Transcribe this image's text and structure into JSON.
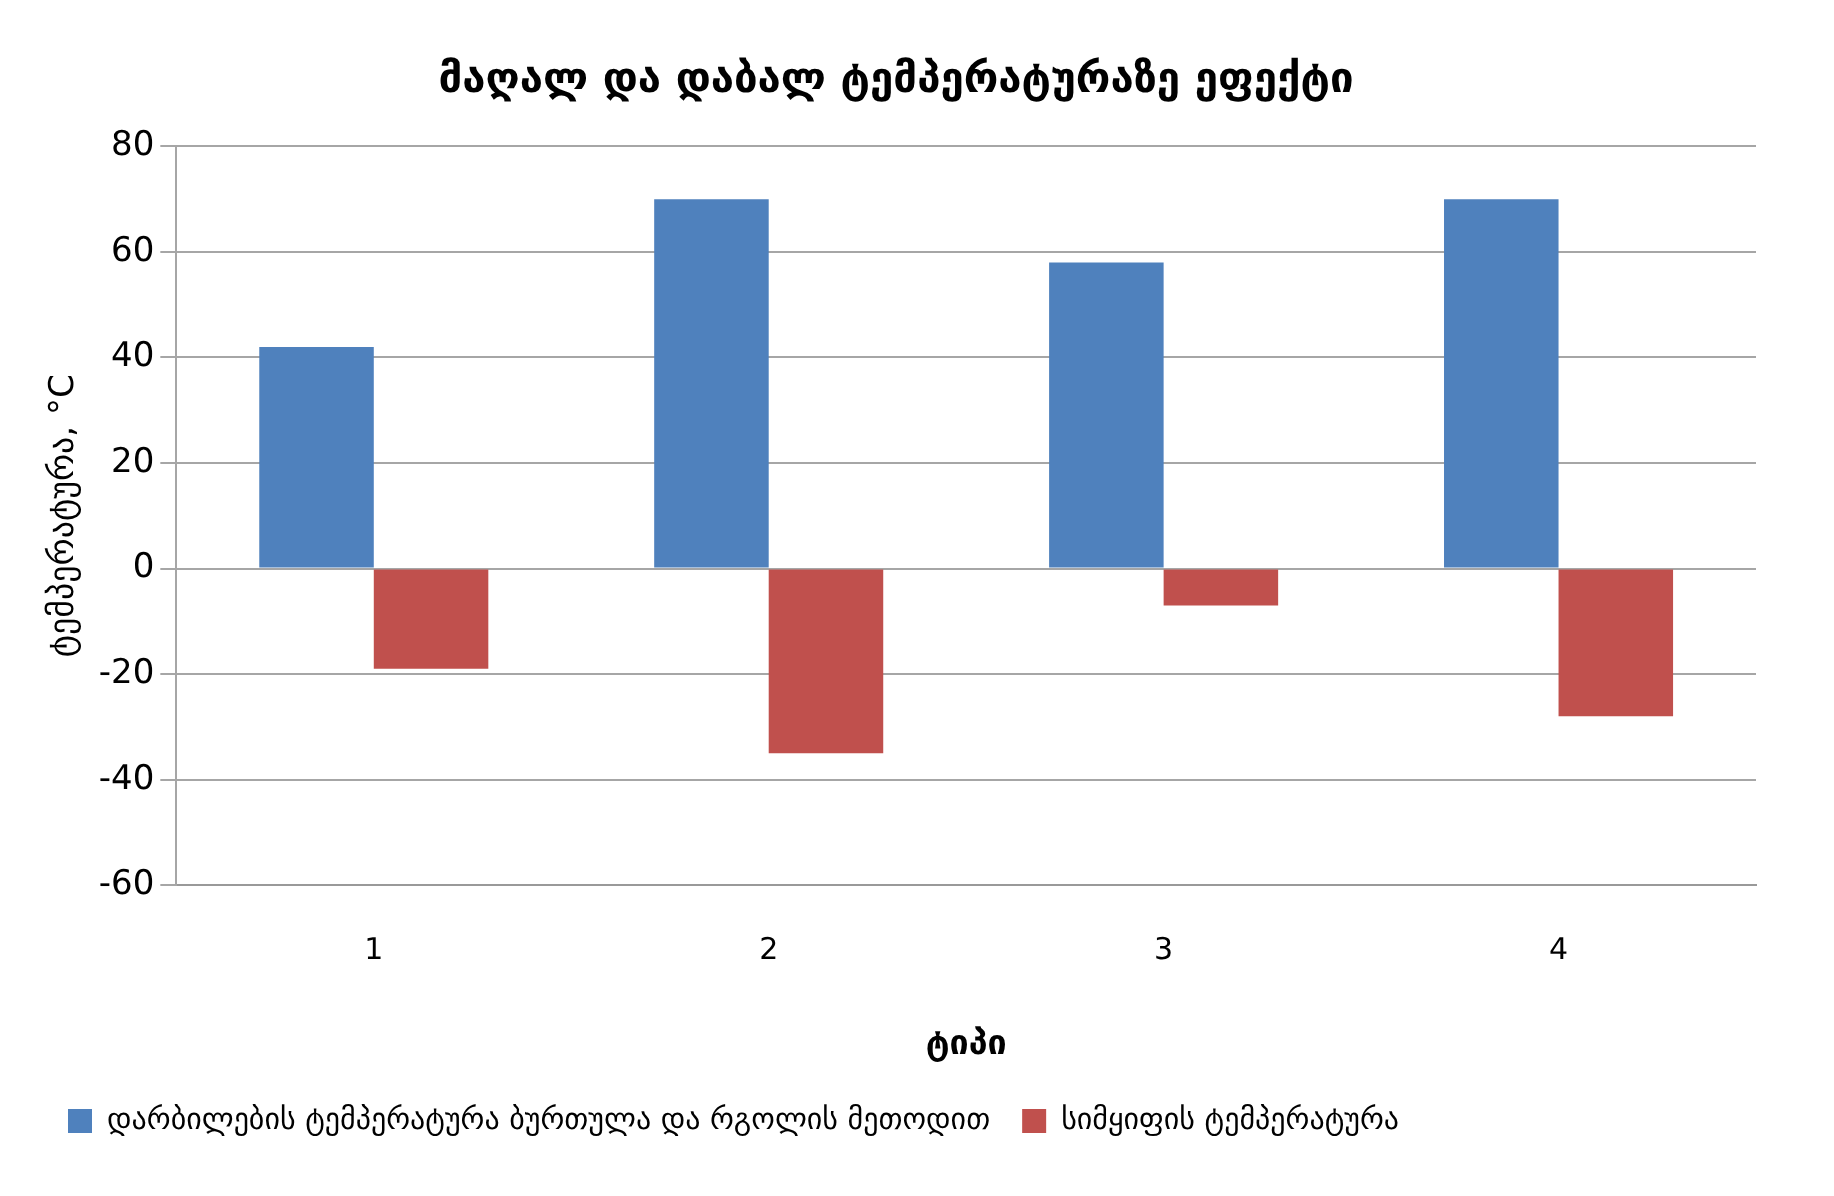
{
  "chart_data": {
    "type": "bar",
    "title": "მაღალ და დაბალ ტემპერატურაზე ეფექტი",
    "xlabel": "ტიპი",
    "ylabel": "ტემპერატურა, °C",
    "categories": [
      "1",
      "2",
      "3",
      "4"
    ],
    "series": [
      {
        "name": "დარბილების ტემპერატურა ბურთულა და რგოლის მეთოდით",
        "color": "#4f81bd",
        "values": [
          42,
          70,
          58,
          70
        ]
      },
      {
        "name": "სიმყიფის ტემპერატურა",
        "color": "#c0504d",
        "values": [
          -19,
          -35,
          -7,
          -28
        ]
      }
    ],
    "ylim": [
      -60,
      80
    ],
    "yticks": [
      -60,
      -40,
      -20,
      0,
      20,
      40,
      60,
      80
    ],
    "grid": "y",
    "legend": "bottom"
  }
}
